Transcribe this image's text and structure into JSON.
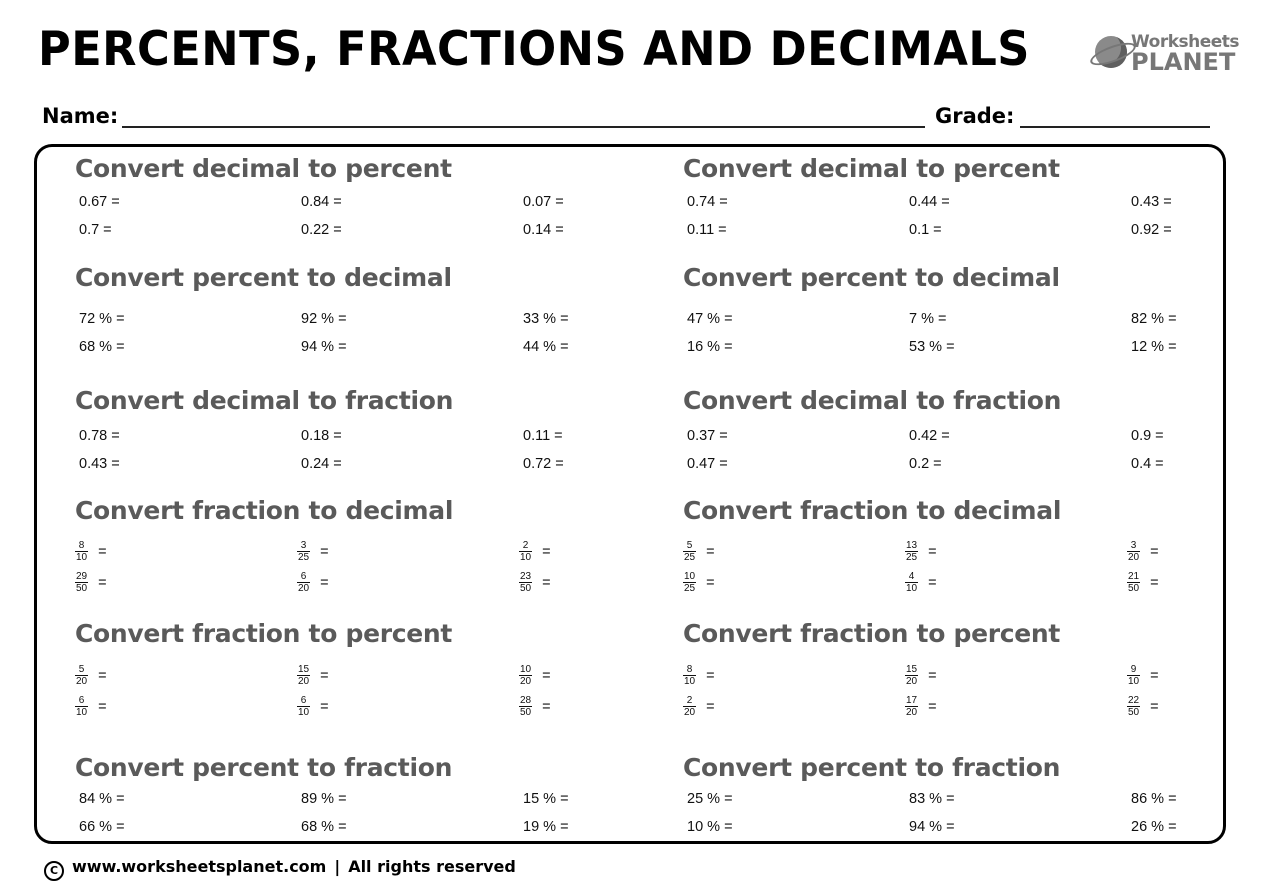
{
  "header": {
    "title": "PERCENTS, FRACTIONS AND DECIMALS",
    "logo_line1": "Worksheets",
    "logo_line2": "PLANET",
    "logo_icon": "planet-icon"
  },
  "form": {
    "name_label": "Name:",
    "grade_label": "Grade:"
  },
  "columns": [
    {
      "sections": [
        {
          "title": "Convert decimal to percent",
          "kind": "text",
          "rows": [
            [
              "0.67 =",
              "0.84 =",
              "0.07 ="
            ],
            [
              "0.7 =",
              "0.22 =",
              "0.14 ="
            ]
          ]
        },
        {
          "title": "Convert percent to decimal",
          "kind": "text",
          "rows": [
            [
              "72 % =",
              "92 % =",
              "33 % ="
            ],
            [
              "68 % =",
              "94 % =",
              "44 % ="
            ]
          ]
        },
        {
          "title": "Convert decimal to fraction",
          "kind": "text",
          "rows": [
            [
              "0.78 =",
              "0.18 =",
              "0.11 ="
            ],
            [
              "0.43 =",
              "0.24 =",
              "0.72 ="
            ]
          ]
        },
        {
          "title": "Convert fraction to decimal",
          "kind": "fraction",
          "rows": [
            [
              {
                "num": "8",
                "den": "10"
              },
              {
                "num": "3",
                "den": "25"
              },
              {
                "num": "2",
                "den": "10"
              }
            ],
            [
              {
                "num": "29",
                "den": "50"
              },
              {
                "num": "6",
                "den": "20"
              },
              {
                "num": "23",
                "den": "50"
              }
            ]
          ]
        },
        {
          "title": "Convert fraction to percent",
          "kind": "fraction",
          "rows": [
            [
              {
                "num": "5",
                "den": "20"
              },
              {
                "num": "15",
                "den": "20"
              },
              {
                "num": "10",
                "den": "20"
              }
            ],
            [
              {
                "num": "6",
                "den": "10"
              },
              {
                "num": "6",
                "den": "10"
              },
              {
                "num": "28",
                "den": "50"
              }
            ]
          ]
        },
        {
          "title": "Convert percent to fraction",
          "kind": "text",
          "rows": [
            [
              "84 % =",
              "89 % =",
              "15 % ="
            ],
            [
              "66 % =",
              "68 % =",
              "19 % ="
            ]
          ]
        }
      ]
    },
    {
      "sections": [
        {
          "title": "Convert decimal to percent",
          "kind": "text",
          "rows": [
            [
              "0.74 =",
              "0.44 =",
              "0.43 ="
            ],
            [
              "0.11 =",
              "0.1 =",
              "0.92 ="
            ]
          ]
        },
        {
          "title": "Convert percent to decimal",
          "kind": "text",
          "rows": [
            [
              "47 % =",
              "7 % =",
              "82 % ="
            ],
            [
              "16 % =",
              "53 % =",
              "12 % ="
            ]
          ]
        },
        {
          "title": "Convert decimal to fraction",
          "kind": "text",
          "rows": [
            [
              "0.37 =",
              "0.42 =",
              "0.9 ="
            ],
            [
              "0.47 =",
              "0.2 =",
              "0.4 ="
            ]
          ]
        },
        {
          "title": "Convert fraction to decimal",
          "kind": "fraction",
          "rows": [
            [
              {
                "num": "5",
                "den": "25"
              },
              {
                "num": "13",
                "den": "25"
              },
              {
                "num": "3",
                "den": "20"
              }
            ],
            [
              {
                "num": "10",
                "den": "25"
              },
              {
                "num": "4",
                "den": "10"
              },
              {
                "num": "21",
                "den": "50"
              }
            ]
          ]
        },
        {
          "title": "Convert fraction to percent",
          "kind": "fraction",
          "rows": [
            [
              {
                "num": "8",
                "den": "10"
              },
              {
                "num": "15",
                "den": "20"
              },
              {
                "num": "9",
                "den": "10"
              }
            ],
            [
              {
                "num": "2",
                "den": "20"
              },
              {
                "num": "17",
                "den": "20"
              },
              {
                "num": "22",
                "den": "50"
              }
            ]
          ]
        },
        {
          "title": "Convert percent to fraction",
          "kind": "text",
          "rows": [
            [
              "25 % =",
              "83 % =",
              "86 % ="
            ],
            [
              "10 % =",
              "94 % =",
              "26 % ="
            ]
          ]
        }
      ]
    }
  ],
  "fraction_suffix": "=",
  "footer": {
    "copyright_symbol": "C",
    "website": "www.worksheetsplanet.com",
    "separator": "|",
    "rights": "All rights reserved"
  }
}
